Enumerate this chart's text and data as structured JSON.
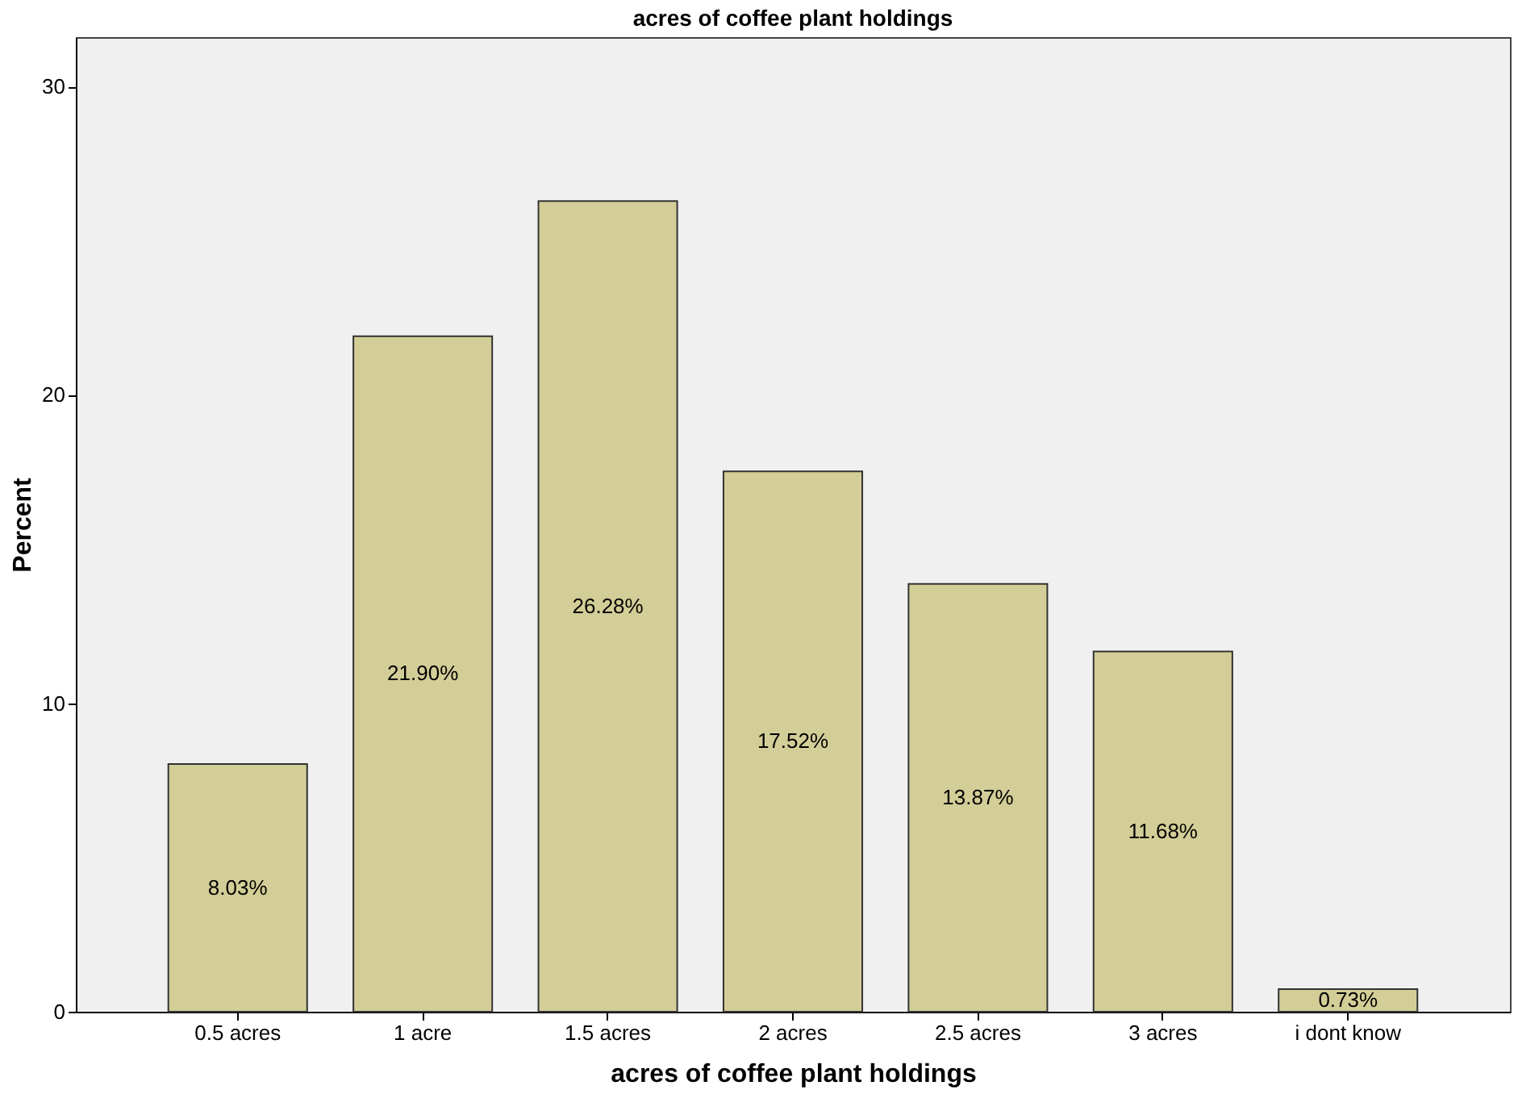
{
  "chart_data": {
    "type": "bar",
    "title": "acres of coffee plant holdings",
    "xlabel": "acres of coffee plant holdings",
    "ylabel": "Percent",
    "categories": [
      "0.5 acres",
      "1 acre",
      "1.5 acres",
      "2 acres",
      "2.5 acres",
      "3 acres",
      "i dont know"
    ],
    "values": [
      8.03,
      21.9,
      26.28,
      17.52,
      13.87,
      11.68,
      0.73
    ],
    "value_labels": [
      "8.03%",
      "21.90%",
      "26.28%",
      "17.52%",
      "13.87%",
      "11.68%",
      "0.73%"
    ],
    "color": "#d3ce97",
    "ylim": [
      0,
      31.6
    ],
    "yticks": [
      0,
      10,
      20,
      30
    ],
    "grid": false
  }
}
